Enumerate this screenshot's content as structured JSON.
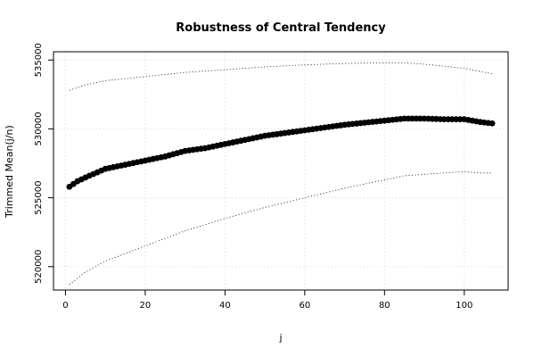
{
  "chart_data": {
    "type": "scatter",
    "title": "Robustness of Central Tendency",
    "xlabel": "j",
    "ylabel": "Trimmed Mean(j/n)",
    "xlim": [
      -3,
      111
    ],
    "ylim": [
      518300,
      535600
    ],
    "x_ticks": [
      0,
      20,
      40,
      60,
      80,
      100
    ],
    "x_tick_labels": [
      "0",
      "20",
      "40",
      "60",
      "80",
      "100"
    ],
    "y_ticks": [
      520000,
      525000,
      530000,
      535000
    ],
    "y_tick_labels": [
      "520000",
      "525000",
      "530000",
      "535000"
    ],
    "grid": true,
    "colors": {
      "points": "#000000",
      "bands": "#000000",
      "grid": "#d9d9d9"
    },
    "series": [
      {
        "role": "mean",
        "marker": "filled-circle",
        "anchors": [
          [
            1,
            525800
          ],
          [
            3,
            526200
          ],
          [
            6,
            526600
          ],
          [
            10,
            527100
          ],
          [
            15,
            527400
          ],
          [
            20,
            527700
          ],
          [
            25,
            528000
          ],
          [
            30,
            528400
          ],
          [
            35,
            528600
          ],
          [
            40,
            528900
          ],
          [
            45,
            529200
          ],
          [
            50,
            529500
          ],
          [
            55,
            529700
          ],
          [
            60,
            529900
          ],
          [
            65,
            530100
          ],
          [
            70,
            530300
          ],
          [
            75,
            530450
          ],
          [
            80,
            530600
          ],
          [
            85,
            530750
          ],
          [
            90,
            530750
          ],
          [
            95,
            530700
          ],
          [
            100,
            530700
          ],
          [
            104,
            530500
          ],
          [
            107,
            530400
          ]
        ]
      },
      {
        "role": "upper-band",
        "line": "dotted",
        "anchors": [
          [
            1,
            532800
          ],
          [
            5,
            533200
          ],
          [
            10,
            533500
          ],
          [
            20,
            533800
          ],
          [
            30,
            534100
          ],
          [
            40,
            534300
          ],
          [
            50,
            534500
          ],
          [
            60,
            534650
          ],
          [
            70,
            534750
          ],
          [
            80,
            534800
          ],
          [
            85,
            534800
          ],
          [
            90,
            534700
          ],
          [
            100,
            534400
          ],
          [
            107,
            534000
          ]
        ]
      },
      {
        "role": "lower-band",
        "line": "dotted",
        "anchors": [
          [
            1,
            518700
          ],
          [
            5,
            519600
          ],
          [
            10,
            520400
          ],
          [
            20,
            521500
          ],
          [
            30,
            522600
          ],
          [
            40,
            523500
          ],
          [
            50,
            524300
          ],
          [
            60,
            525000
          ],
          [
            70,
            525700
          ],
          [
            80,
            526300
          ],
          [
            85,
            526600
          ],
          [
            90,
            526700
          ],
          [
            95,
            526800
          ],
          [
            100,
            526900
          ],
          [
            104,
            526800
          ],
          [
            107,
            526800
          ]
        ]
      }
    ]
  }
}
